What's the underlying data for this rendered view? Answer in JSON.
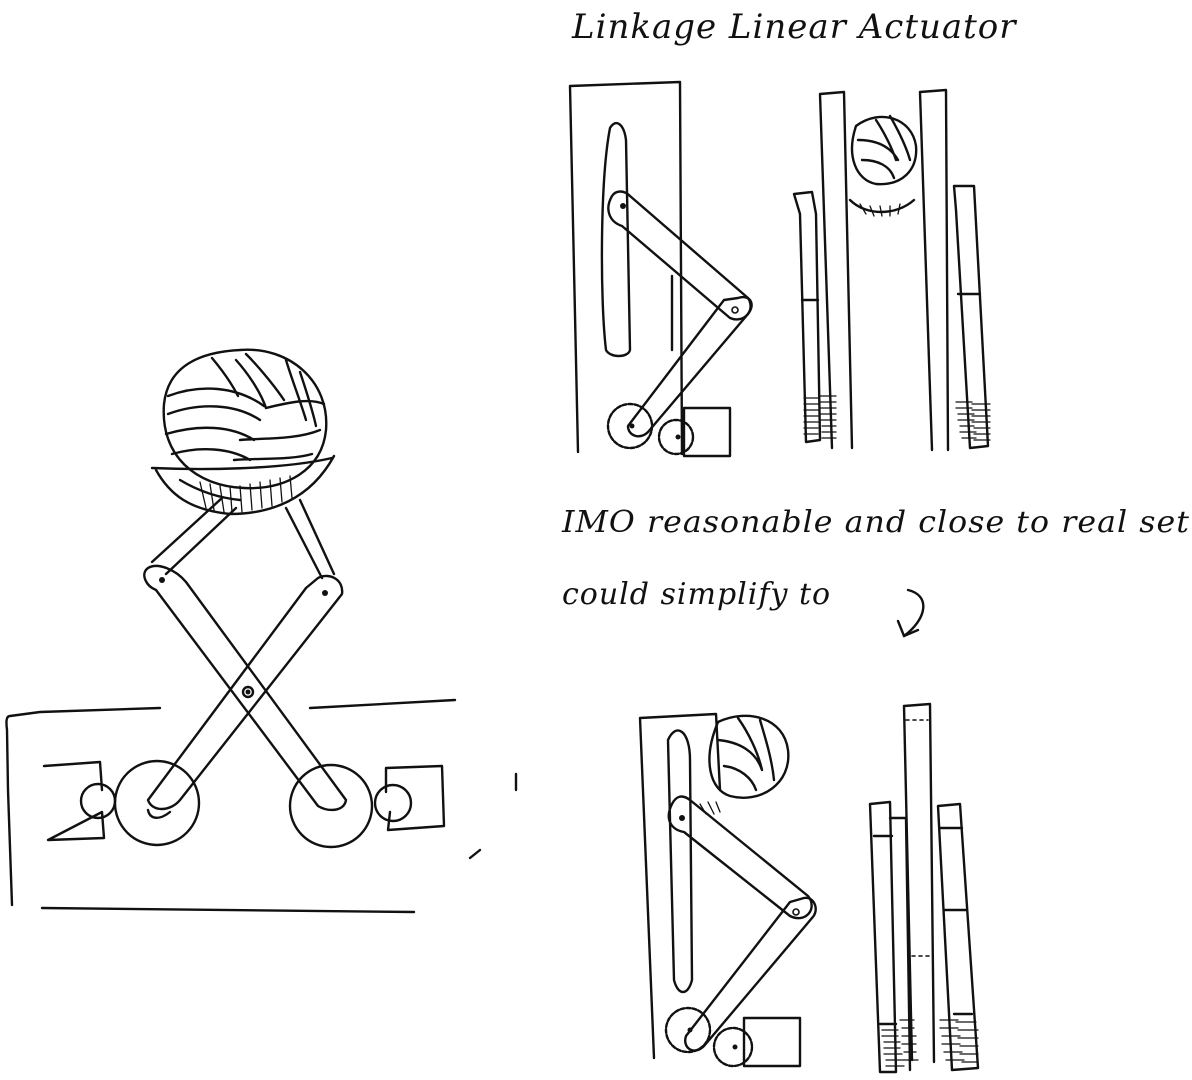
{
  "notes": {
    "title": "Linkage Linear Actuator",
    "comment_line_1": "IMO reasonable and close to real set",
    "comment_line_2": "could simplify to"
  },
  "ink_color": "#111111",
  "background_color": "#ffffff"
}
